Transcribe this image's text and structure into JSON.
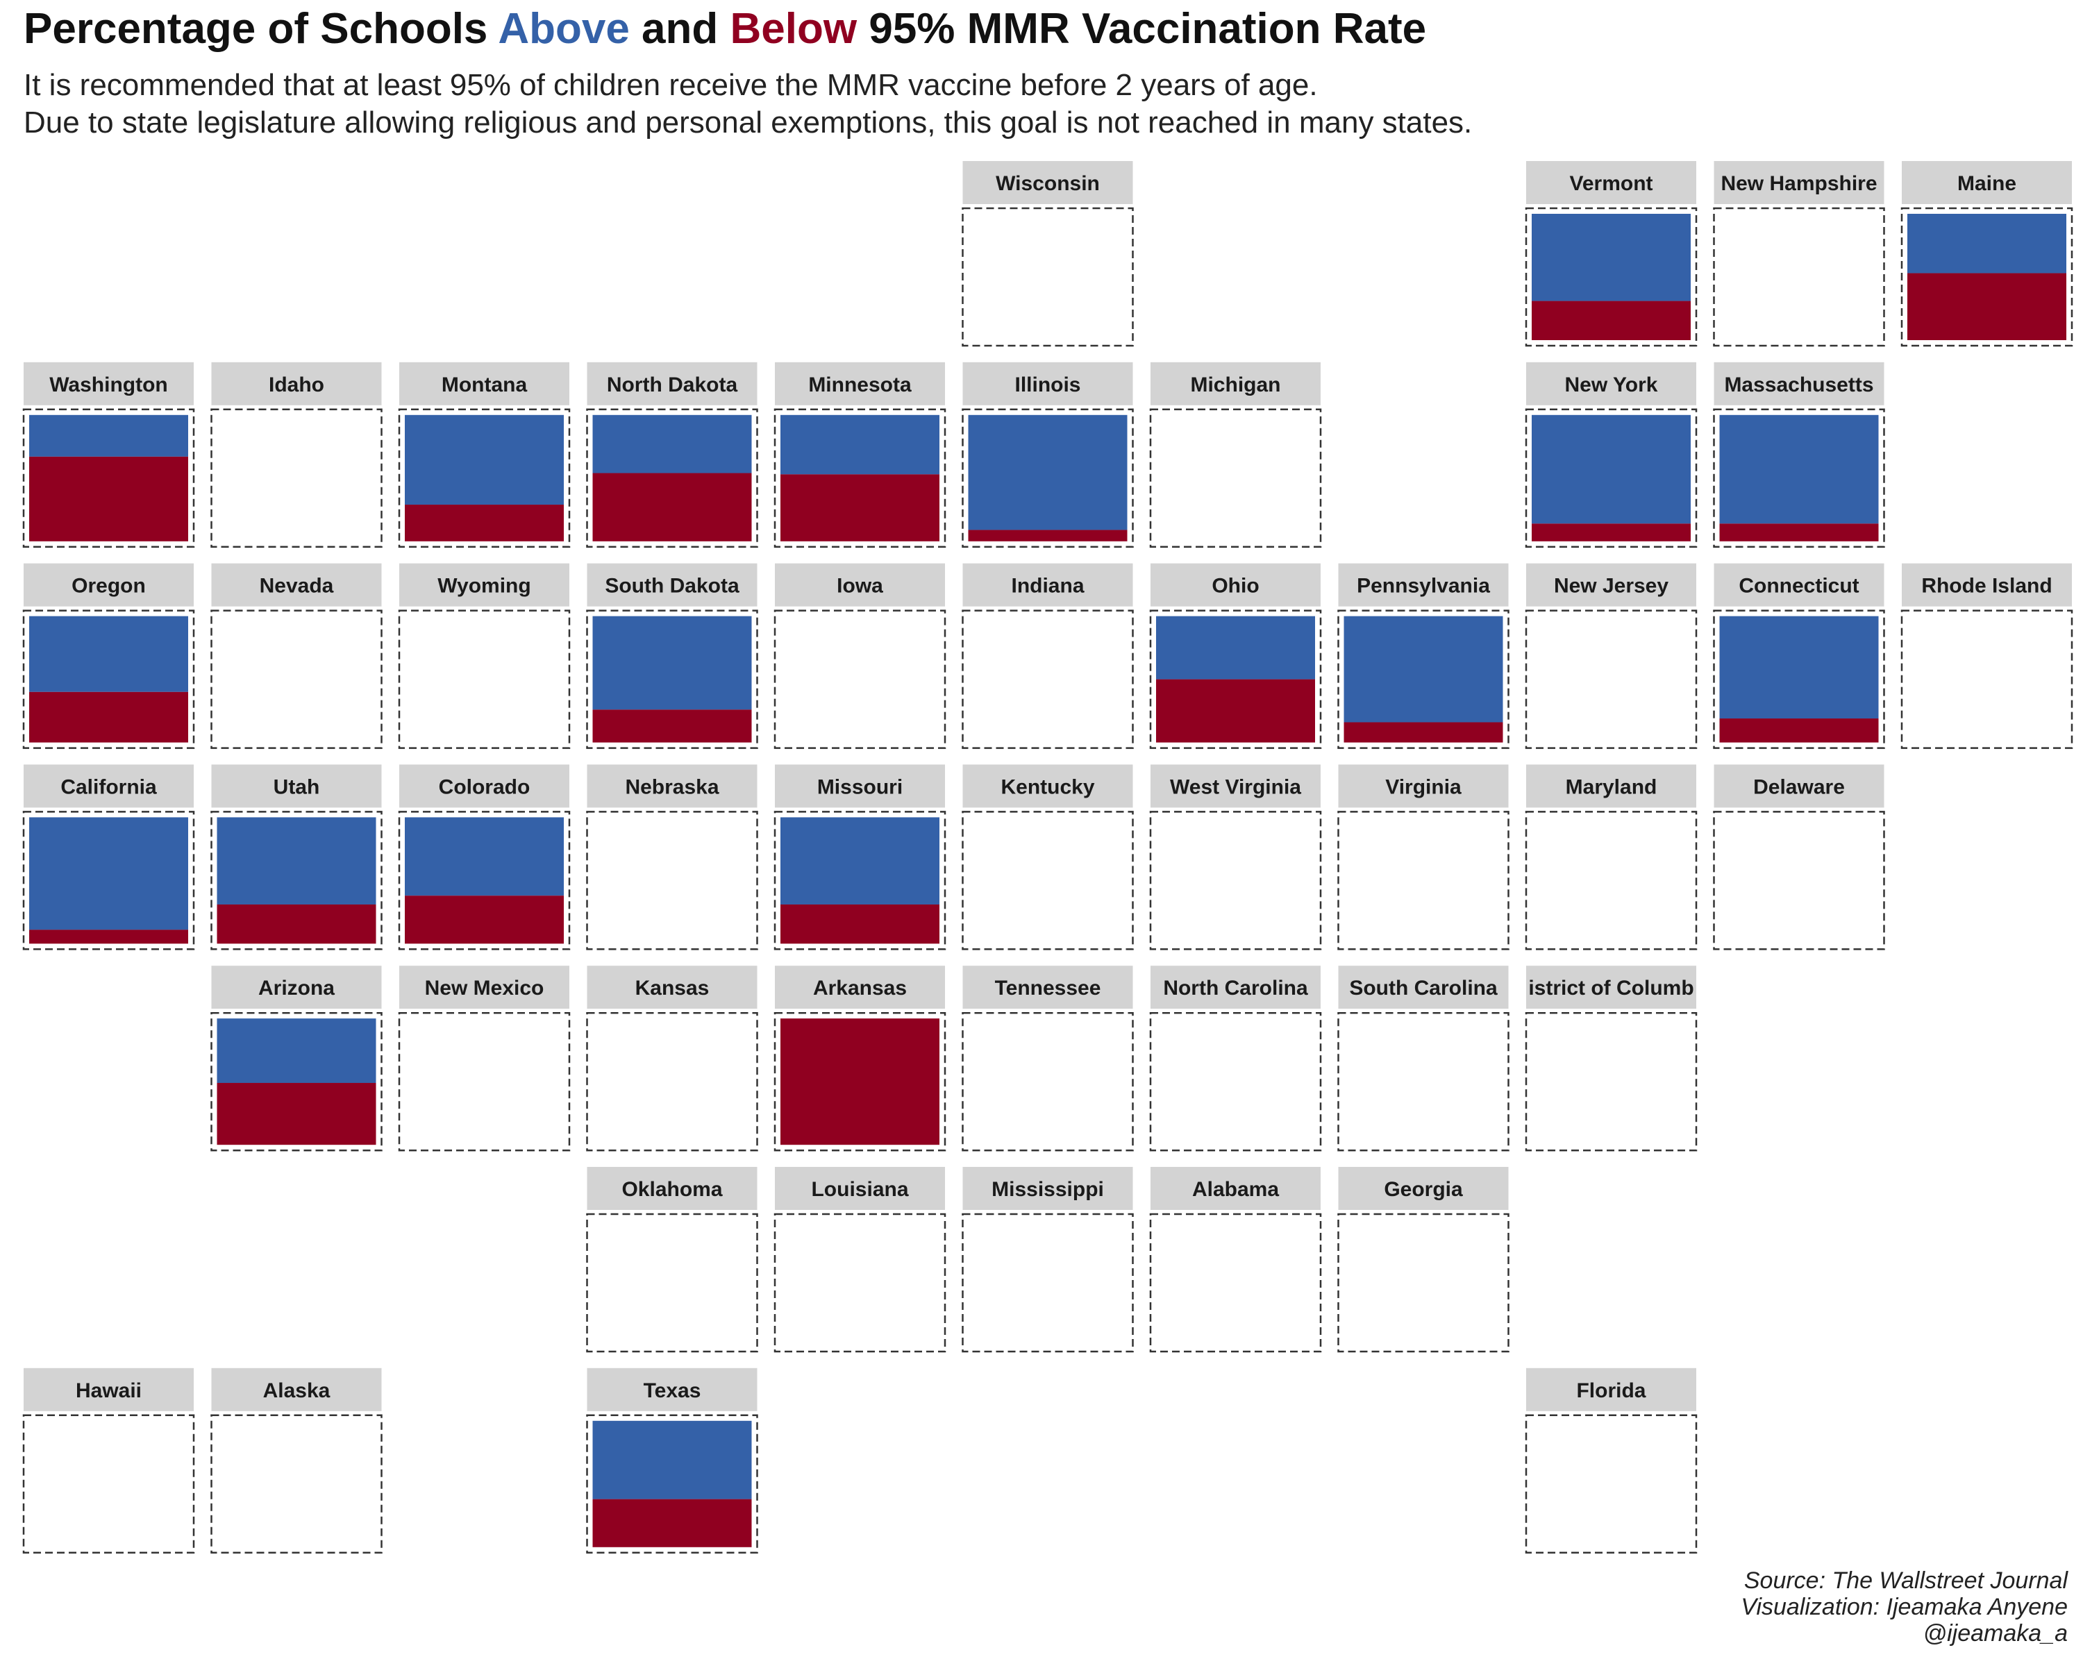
{
  "header": {
    "title_part1": "Percentage of Schools ",
    "title_above": "Above",
    "title_part2": " and ",
    "title_below": "Below",
    "title_part3": " 95% MMR Vaccination Rate",
    "subtitle_line1": "It is recommended that at least 95% of children receive the MMR vaccine before 2 years of age.",
    "subtitle_line2": "Due to state legislature allowing religious and personal exemptions, this goal is not reached in many states."
  },
  "caption": {
    "line1": "Source:  The Wallstreet Journal",
    "line2": "Visualization: Ijeamaka Anyene",
    "line3": "@ijeamaka_a"
  },
  "colors": {
    "above": "#3461A8",
    "below": "#900020",
    "strip": "#D3D3D3",
    "border": "#333333"
  },
  "chart_data": {
    "type": "bar",
    "layout": "geofacet tile grid map, stacked 100% bar per state",
    "series_names": [
      "Above",
      "Below"
    ],
    "states": [
      {
        "name": "Wisconsin",
        "row": 1,
        "col": 6,
        "above": null,
        "below": null
      },
      {
        "name": "Vermont",
        "row": 1,
        "col": 9,
        "above": 69,
        "below": 31
      },
      {
        "name": "New Hampshire",
        "row": 1,
        "col": 10,
        "above": null,
        "below": null
      },
      {
        "name": "Maine",
        "row": 1,
        "col": 11,
        "above": 47,
        "below": 53
      },
      {
        "name": "Washington",
        "row": 2,
        "col": 1,
        "above": 33,
        "below": 67
      },
      {
        "name": "Idaho",
        "row": 2,
        "col": 2,
        "above": null,
        "below": null
      },
      {
        "name": "Montana",
        "row": 2,
        "col": 3,
        "above": 71,
        "below": 29
      },
      {
        "name": "North Dakota",
        "row": 2,
        "col": 4,
        "above": 46,
        "below": 54
      },
      {
        "name": "Minnesota",
        "row": 2,
        "col": 5,
        "above": 47,
        "below": 53
      },
      {
        "name": "Illinois",
        "row": 2,
        "col": 6,
        "above": 91,
        "below": 9
      },
      {
        "name": "Michigan",
        "row": 2,
        "col": 7,
        "above": null,
        "below": null
      },
      {
        "name": "New York",
        "row": 2,
        "col": 9,
        "above": 86,
        "below": 14
      },
      {
        "name": "Massachusetts",
        "row": 2,
        "col": 10,
        "above": 86,
        "below": 14
      },
      {
        "name": "Oregon",
        "row": 3,
        "col": 1,
        "above": 60,
        "below": 40
      },
      {
        "name": "Nevada",
        "row": 3,
        "col": 2,
        "above": null,
        "below": null
      },
      {
        "name": "Wyoming",
        "row": 3,
        "col": 3,
        "above": null,
        "below": null
      },
      {
        "name": "South Dakota",
        "row": 3,
        "col": 4,
        "above": 74,
        "below": 26
      },
      {
        "name": "Iowa",
        "row": 3,
        "col": 5,
        "above": null,
        "below": null
      },
      {
        "name": "Indiana",
        "row": 3,
        "col": 6,
        "above": null,
        "below": null
      },
      {
        "name": "Ohio",
        "row": 3,
        "col": 7,
        "above": 50,
        "below": 50
      },
      {
        "name": "Pennsylvania",
        "row": 3,
        "col": 8,
        "above": 84,
        "below": 16
      },
      {
        "name": "New Jersey",
        "row": 3,
        "col": 9,
        "above": null,
        "below": null
      },
      {
        "name": "Connecticut",
        "row": 3,
        "col": 10,
        "above": 81,
        "below": 19
      },
      {
        "name": "Rhode Island",
        "row": 3,
        "col": 11,
        "above": null,
        "below": null
      },
      {
        "name": "California",
        "row": 4,
        "col": 1,
        "above": 89,
        "below": 11
      },
      {
        "name": "Utah",
        "row": 4,
        "col": 2,
        "above": 69,
        "below": 31
      },
      {
        "name": "Colorado",
        "row": 4,
        "col": 3,
        "above": 62,
        "below": 38
      },
      {
        "name": "Nebraska",
        "row": 4,
        "col": 4,
        "above": null,
        "below": null
      },
      {
        "name": "Missouri",
        "row": 4,
        "col": 5,
        "above": 69,
        "below": 31
      },
      {
        "name": "Kentucky",
        "row": 4,
        "col": 6,
        "above": null,
        "below": null
      },
      {
        "name": "West Virginia",
        "row": 4,
        "col": 7,
        "above": null,
        "below": null
      },
      {
        "name": "Virginia",
        "row": 4,
        "col": 8,
        "above": null,
        "below": null
      },
      {
        "name": "Maryland",
        "row": 4,
        "col": 9,
        "above": null,
        "below": null
      },
      {
        "name": "Delaware",
        "row": 4,
        "col": 10,
        "above": null,
        "below": null
      },
      {
        "name": "Arizona",
        "row": 5,
        "col": 2,
        "above": 51,
        "below": 49
      },
      {
        "name": "New Mexico",
        "row": 5,
        "col": 3,
        "above": null,
        "below": null
      },
      {
        "name": "Kansas",
        "row": 5,
        "col": 4,
        "above": null,
        "below": null
      },
      {
        "name": "Arkansas",
        "row": 5,
        "col": 5,
        "above": 0,
        "below": 100
      },
      {
        "name": "Tennessee",
        "row": 5,
        "col": 6,
        "above": null,
        "below": null
      },
      {
        "name": "North Carolina",
        "row": 5,
        "col": 7,
        "above": null,
        "below": null
      },
      {
        "name": "South Carolina",
        "row": 5,
        "col": 8,
        "above": null,
        "below": null
      },
      {
        "name": "istrict of Columb",
        "row": 5,
        "col": 9,
        "above": null,
        "below": null
      },
      {
        "name": "Oklahoma",
        "row": 6,
        "col": 4,
        "above": null,
        "below": null
      },
      {
        "name": "Louisiana",
        "row": 6,
        "col": 5,
        "above": null,
        "below": null
      },
      {
        "name": "Mississippi",
        "row": 6,
        "col": 6,
        "above": null,
        "below": null
      },
      {
        "name": "Alabama",
        "row": 6,
        "col": 7,
        "above": null,
        "below": null
      },
      {
        "name": "Georgia",
        "row": 6,
        "col": 8,
        "above": null,
        "below": null
      },
      {
        "name": "Hawaii",
        "row": 7,
        "col": 1,
        "above": null,
        "below": null
      },
      {
        "name": "Alaska",
        "row": 7,
        "col": 2,
        "above": null,
        "below": null
      },
      {
        "name": "Texas",
        "row": 7,
        "col": 4,
        "above": 62,
        "below": 38
      },
      {
        "name": "Florida",
        "row": 7,
        "col": 9,
        "above": null,
        "below": null
      }
    ]
  }
}
